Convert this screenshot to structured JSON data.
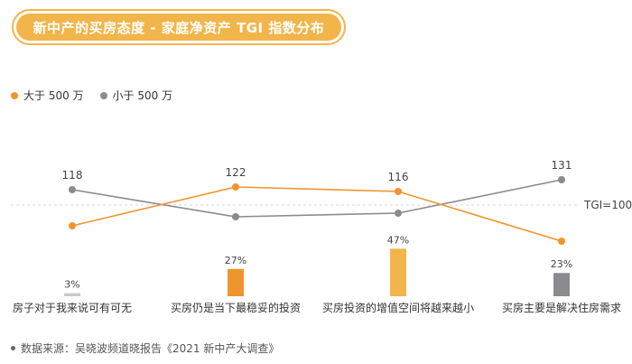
{
  "header": {
    "title": "新中产的买房态度 - 家庭净资产 TGI 指数分布"
  },
  "colors": {
    "orange": "#f0952e",
    "gray": "#8b8b8f",
    "accent": "#f2b54a"
  },
  "chart_data": {
    "type": "line",
    "categories": [
      "房子对于我来说可有可无",
      "买房仍是当下最稳妥的投资",
      "买房投资的增值空间将越来越小",
      "买房主要是解决住房需求"
    ],
    "series": [
      {
        "name": "大于 500 万",
        "values": [
          null,
          122,
          116,
          null
        ],
        "labels": [
          "",
          "122",
          "116",
          ""
        ]
      },
      {
        "name": "小于 500 万",
        "values": [
          118,
          null,
          null,
          131
        ],
        "labels": [
          "118",
          "",
          "",
          "131"
        ]
      }
    ],
    "reference_line": {
      "label": "TGI=100",
      "value": 100
    },
    "bars": {
      "values": [
        3,
        27,
        47,
        23
      ],
      "labels": [
        "3%",
        "27%",
        "47%",
        "23%"
      ],
      "colors": [
        "#c9c9c9",
        "#f0952e",
        "#f2b54a",
        "#8b8b8f"
      ]
    },
    "legend_position": "top-left"
  },
  "footer": {
    "source": "数据来源：吴晓波频道晓报告《2021 新中产大调查》"
  }
}
